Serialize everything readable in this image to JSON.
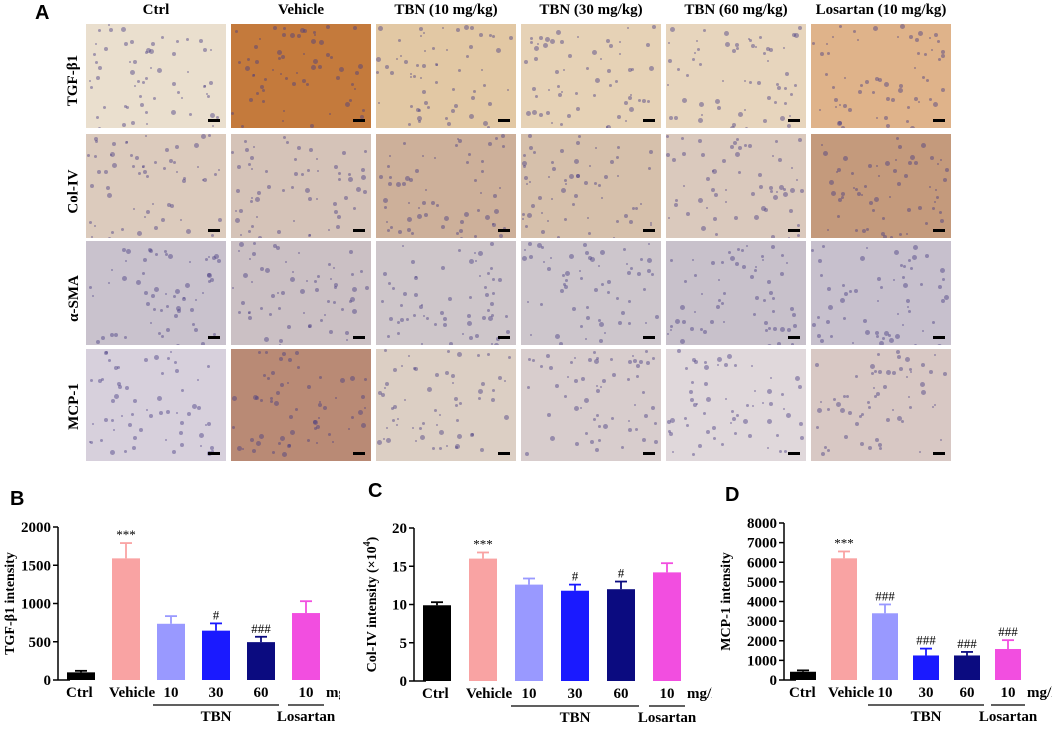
{
  "panel_a": {
    "letter": "A",
    "columns": [
      "Ctrl",
      "Vehicle",
      "TBN (10 mg/kg)",
      "TBN (30 mg/kg)",
      "TBN (60 mg/kg)",
      "Losartan (10  mg/kg)"
    ],
    "rows": [
      "TGF-β1",
      "Col-IV",
      "α-SMA",
      "MCP-1"
    ],
    "stain_colors": [
      [
        "#eadfce",
        "#c47a3c",
        "#e2c8a4",
        "#e6d2b6",
        "#e7d5bd",
        "#dfb38a"
      ],
      [
        "#dccbbd",
        "#d5c3b8",
        "#cdb09a",
        "#d6c0ab",
        "#dac9bd",
        "#c49a7c"
      ],
      [
        "#c9c2cd",
        "#cbc0c4",
        "#cec6ca",
        "#cdc6cc",
        "#c8c1cb",
        "#c7c0cd"
      ],
      [
        "#d7d0dc",
        "#b98a75",
        "#dccfc4",
        "#d8cdcd",
        "#e0d8db",
        "#d8c8c4"
      ]
    ]
  },
  "chart_data": [
    {
      "type": "bar",
      "panel": "B",
      "ylabel": "TGF-β1 intensity",
      "ylim": [
        0,
        2000
      ],
      "yticks": [
        "0",
        "500",
        "1000",
        "1500",
        "2000"
      ],
      "categories": [
        "Ctrl",
        "Vehicle",
        "10",
        "30",
        "60",
        "10"
      ],
      "values": [
        100,
        1590,
        735,
        645,
        495,
        875
      ],
      "errors": [
        20,
        200,
        100,
        95,
        70,
        155
      ],
      "annotations": [
        "",
        "***",
        "",
        "#",
        "###",
        ""
      ],
      "colors": [
        "#000000",
        "#f9a3a3",
        "#9999ff",
        "#1a1aff",
        "#0b0b80",
        "#f24ee0"
      ],
      "unit_label": "mg/kg",
      "groups": [
        {
          "label": "TBN",
          "from": 2,
          "to": 4
        },
        {
          "label": "Losartan",
          "from": 5,
          "to": 5
        }
      ]
    },
    {
      "type": "bar",
      "panel": "C",
      "ylabel": "Col-IV intensity (×10",
      "ylabel_sup": "4",
      "ylabel_end": ")",
      "ylim": [
        0,
        20
      ],
      "yticks": [
        "0",
        "5",
        "10",
        "15",
        "20"
      ],
      "categories": [
        "Ctrl",
        "Vehicle",
        "10",
        "30",
        "60",
        "10"
      ],
      "values": [
        9.9,
        16.0,
        12.6,
        11.8,
        12.0,
        14.2
      ],
      "errors": [
        0.4,
        0.8,
        0.8,
        0.8,
        1.0,
        1.2
      ],
      "annotations": [
        "",
        "***",
        "",
        "#",
        "#",
        ""
      ],
      "colors": [
        "#000000",
        "#f9a3a3",
        "#9999ff",
        "#1a1aff",
        "#0b0b80",
        "#f24ee0"
      ],
      "unit_label": "mg/kg",
      "groups": [
        {
          "label": "TBN",
          "from": 2,
          "to": 4
        },
        {
          "label": "Losartan",
          "from": 5,
          "to": 5
        }
      ]
    },
    {
      "type": "bar",
      "panel": "D",
      "ylabel": "MCP-1 intensity",
      "ylim": [
        0,
        8000
      ],
      "yticks": [
        "0",
        "1000",
        "2000",
        "3000",
        "4000",
        "5000",
        "6000",
        "7000",
        "8000"
      ],
      "categories": [
        "Ctrl",
        "Vehicle",
        "10",
        "30",
        "60",
        "10"
      ],
      "values": [
        420,
        6200,
        3400,
        1250,
        1250,
        1580
      ],
      "errors": [
        70,
        350,
        450,
        350,
        180,
        450
      ],
      "annotations": [
        "",
        "***",
        "###",
        "###",
        "###",
        "###"
      ],
      "colors": [
        "#000000",
        "#f9a3a3",
        "#9999ff",
        "#1a1aff",
        "#0b0b80",
        "#f24ee0"
      ],
      "unit_label": "mg/kg",
      "groups": [
        {
          "label": "TBN",
          "from": 2,
          "to": 4
        },
        {
          "label": "Losartan",
          "from": 5,
          "to": 5
        }
      ]
    }
  ]
}
